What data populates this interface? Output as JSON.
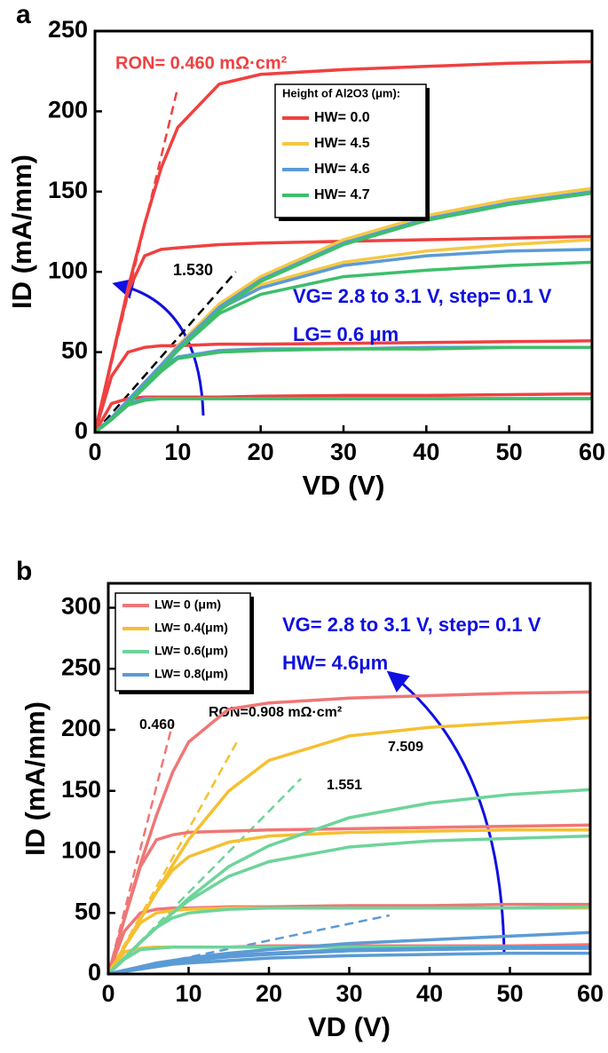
{
  "chart_data": [
    {
      "type": "line",
      "panel_label": "a",
      "x_label": "VD (V)",
      "y_label": "ID (mA/mm)",
      "xlim": [
        0,
        60
      ],
      "ylim": [
        0,
        250
      ],
      "xticks": [
        0,
        10,
        20,
        30,
        40,
        50,
        60
      ],
      "yticks": [
        0,
        50,
        100,
        150,
        200,
        250
      ],
      "legend_title": "Height of Al2O3 (μm):",
      "legend": "upper center",
      "x": [
        0,
        2,
        4,
        6,
        8,
        10,
        15,
        20,
        30,
        40,
        50,
        60
      ],
      "series": [
        {
          "name": "HW= 0.0",
          "color": "#f04040",
          "values": [
            [
              0,
              45,
              90,
              130,
              165,
              190,
              217,
              223,
              226,
              228,
              230,
              231
            ],
            [
              0,
              45,
              88,
              110,
              114,
              115,
              117,
              118,
              119,
              120,
              121,
              122
            ],
            [
              0,
              35,
              50,
              53,
              54,
              54,
              55,
              55,
              55.5,
              56,
              56.5,
              57
            ],
            [
              0,
              18,
              21,
              22,
              22,
              22,
              22,
              22.5,
              23,
              23,
              23.5,
              24
            ]
          ]
        },
        {
          "name": "HW= 4.5",
          "color": "#f5c842",
          "values": [
            [
              0,
              9,
              20,
              31,
              42,
              54,
              80,
              97,
              120,
              135,
              145,
              152
            ],
            [
              0,
              9,
              20,
              31,
              42,
              54,
              78,
              92,
              106,
              113,
              117,
              120
            ],
            [
              0,
              9,
              20,
              31,
              40,
              46,
              50,
              51,
              52,
              52,
              53,
              53
            ],
            [
              0,
              9,
              18,
              21,
              21,
              21,
              21,
              21,
              21,
              21,
              21,
              21
            ]
          ]
        },
        {
          "name": "HW= 4.6",
          "color": "#5b9bd5",
          "values": [
            [
              0,
              9,
              20,
              31,
              42,
              53,
              78,
              95,
              118,
              133,
              143,
              150
            ],
            [
              0,
              9,
              20,
              31,
              42,
              53,
              77,
              90,
              104,
              110,
              113,
              114
            ],
            [
              0,
              9,
              20,
              31,
              40,
              47,
              51,
              52,
              52,
              53,
              53,
              53
            ],
            [
              0,
              9,
              18,
              21,
              21,
              21,
              21,
              21,
              21,
              21,
              21,
              21
            ]
          ]
        },
        {
          "name": "HW= 4.7",
          "color": "#3cbf6a",
          "values": [
            [
              0,
              8,
              18,
              29,
              40,
              51,
              76,
              94,
              117,
              132,
              142,
              149
            ],
            [
              0,
              8,
              18,
              29,
              40,
              51,
              74,
              86,
              97,
              101,
              104,
              106
            ],
            [
              0,
              8,
              18,
              28,
              38,
              46,
              50,
              51,
              52,
              52,
              53,
              53
            ],
            [
              0,
              8,
              17,
              20,
              21,
              21,
              21,
              21,
              21,
              21,
              21,
              21
            ]
          ]
        }
      ],
      "fits": [
        {
          "label": "RON= 0.460 mΩ·cm²",
          "color": "#f04040",
          "x": [
            0,
            10
          ],
          "values": [
            0,
            215
          ]
        },
        {
          "label": "1.530",
          "color": "#000000",
          "x": [
            0,
            17
          ],
          "values": [
            0,
            100
          ]
        }
      ],
      "annotations": [
        "VG= 2.8 to 3.1 V, step= 0.1 V",
        "LG= 0.6 μm"
      ]
    },
    {
      "type": "line",
      "panel_label": "b",
      "x_label": "VD (V)",
      "y_label": "ID (mA/mm)",
      "xlim": [
        0,
        60
      ],
      "ylim": [
        0,
        320
      ],
      "xticks": [
        0,
        10,
        20,
        30,
        40,
        50,
        60
      ],
      "yticks": [
        0,
        50,
        100,
        150,
        200,
        250,
        300
      ],
      "legend": "upper left",
      "x": [
        0,
        2,
        4,
        6,
        8,
        10,
        15,
        20,
        30,
        40,
        50,
        60
      ],
      "series": [
        {
          "name": "LW= 0   (μm)",
          "color": "#f07676",
          "values": [
            [
              0,
              45,
              90,
              130,
              165,
              190,
              217,
              222,
              226,
              228,
              230,
              231
            ],
            [
              0,
              45,
              88,
              110,
              114,
              116,
              117,
              118,
              119,
              120,
              121,
              122
            ],
            [
              0,
              35,
              50,
              53,
              54,
              54,
              55,
              55,
              56,
              56,
              57,
              57
            ],
            [
              0,
              18,
              21,
              22,
              22,
              22,
              22,
              23,
              23,
              23,
              23,
              24
            ]
          ]
        },
        {
          "name": "LW= 0.4(μm)",
          "color": "#f5c030",
          "values": [
            [
              0,
              22,
              45,
              67,
              89,
              110,
              150,
              175,
              195,
              202,
              206,
              210
            ],
            [
              0,
              22,
              45,
              67,
              85,
              96,
              108,
              113,
              116,
              117,
              118,
              118
            ],
            [
              0,
              22,
              42,
              50,
              52,
              53,
              54,
              54,
              54,
              54,
              54,
              54
            ],
            [
              0,
              18,
              21,
              22,
              22,
              22,
              22,
              22,
              22,
              22,
              22,
              22
            ]
          ]
        },
        {
          "name": "LW= 0.6(μm)",
          "color": "#6dd49a",
          "values": [
            [
              0,
              13,
              26,
              38,
              50,
              62,
              88,
              105,
              128,
              140,
              147,
              151
            ],
            [
              0,
              13,
              26,
              38,
              50,
              60,
              80,
              92,
              104,
              109,
              111,
              113
            ],
            [
              0,
              13,
              26,
              38,
              46,
              50,
              53,
              54,
              54,
              54,
              54,
              55
            ],
            [
              0,
              12,
              20,
              21,
              22,
              22,
              22,
              22,
              22,
              22,
              22,
              22
            ]
          ]
        },
        {
          "name": "LW= 0.8(μm)",
          "color": "#5b9bd5",
          "values": [
            [
              0,
              3,
              6,
              9,
              11,
              13,
              17,
              20,
              25,
              28,
              31,
              34
            ],
            [
              0,
              3,
              6,
              8,
              10,
              12,
              15,
              17,
              20,
              21,
              22,
              22
            ],
            [
              0,
              3,
              5,
              7,
              9,
              11,
              14,
              16,
              19,
              20,
              21,
              21
            ],
            [
              0,
              2,
              4,
              6,
              8,
              9,
              11,
              13,
              15,
              16,
              17,
              17
            ]
          ]
        }
      ],
      "fits": [
        {
          "label": "0.460",
          "color": "#f07676",
          "x": [
            0,
            8
          ],
          "values": [
            0,
            205
          ]
        },
        {
          "label": "RON=0.908 mΩ·cm²",
          "color": "#f5c030",
          "x": [
            0,
            16
          ],
          "values": [
            0,
            190
          ]
        },
        {
          "label": "1.551",
          "color": "#6dd49a",
          "x": [
            0,
            24
          ],
          "values": [
            0,
            160
          ]
        },
        {
          "label": "7.509",
          "color": "#5b9bd5",
          "x": [
            0,
            35
          ],
          "values": [
            0,
            48
          ]
        }
      ],
      "annotations": [
        "VG= 2.8 to 3.1 V, step= 0.1 V",
        "HW= 4.6μm"
      ]
    }
  ]
}
